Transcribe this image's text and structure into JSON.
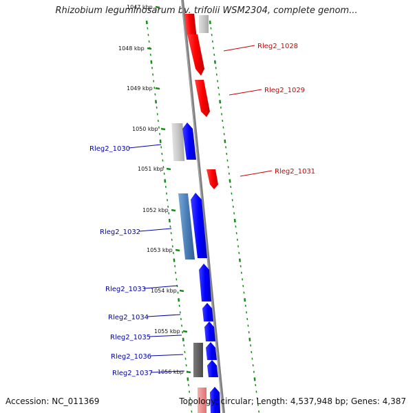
{
  "title": "Rhizobium leguminosarum bv. trifolii WSM2304, complete genom...",
  "footer": {
    "accession": "Accession: NC_011369",
    "summary": "Topology: circular; Length: 4,537,948 bp; Genes: 4,387"
  },
  "colors": {
    "forward_gene": "#ff0000",
    "reverse_gene": "#0000ff",
    "backbone": "#8c8c8c",
    "tick": "#1a8a1a",
    "label_red": "#cc0000",
    "label_blue": "#0000aa"
  },
  "kbp_ticks": [
    {
      "label": "1047 kbp"
    },
    {
      "label": "1048 kbp"
    },
    {
      "label": "1049 kbp"
    },
    {
      "label": "1050 kbp"
    },
    {
      "label": "1051 kbp"
    },
    {
      "label": "1052 kbp"
    },
    {
      "label": "1053 kbp"
    },
    {
      "label": "1054 kbp"
    },
    {
      "label": "1055 kbp"
    },
    {
      "label": "1056 kbp"
    }
  ],
  "genes_forward": [
    {
      "label": "Rleg2_1028"
    },
    {
      "label": "Rleg2_1029"
    },
    {
      "label": "Rleg2_1031"
    }
  ],
  "genes_reverse": [
    {
      "label": "Rleg2_1030"
    },
    {
      "label": "Rleg2_1032"
    },
    {
      "label": "Rleg2_1033"
    },
    {
      "label": "Rleg2_1034"
    },
    {
      "label": "Rleg2_1035"
    },
    {
      "label": "Rleg2_1036"
    },
    {
      "label": "Rleg2_1037"
    }
  ]
}
